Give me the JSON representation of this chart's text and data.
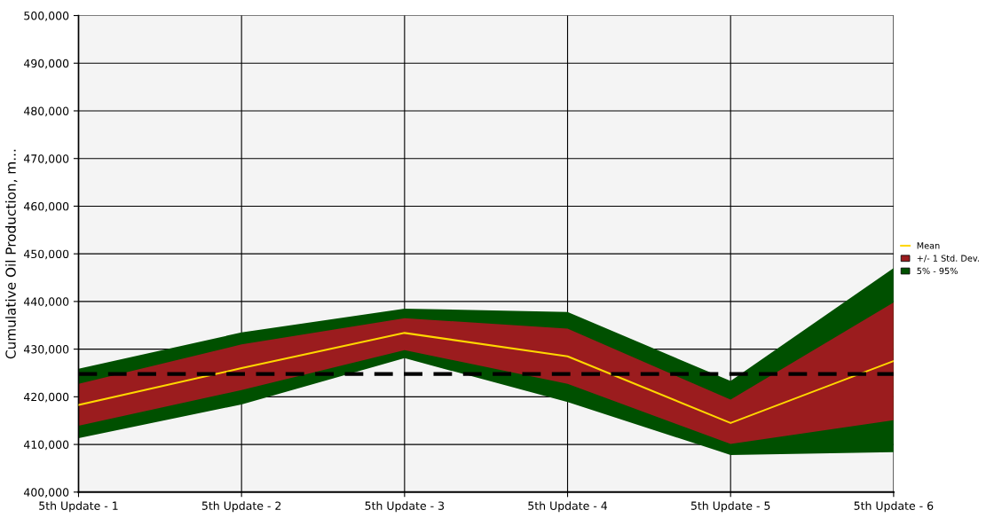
{
  "chart_data": {
    "type": "line",
    "ylabel": "Cumulative Oil Production, m...",
    "categories": [
      "5th Update - 1",
      "5th Update - 2",
      "5th Update - 3",
      "5th Update - 4",
      "5th Update - 5",
      "5th Update - 6"
    ],
    "series": [
      {
        "name": "5% - 95%",
        "type": "line",
        "color": "#005000",
        "values": [
          null,
          null,
          null,
          null,
          null,
          null
        ],
        "lower": [
          411300,
          418400,
          428100,
          418900,
          407800,
          408400
        ],
        "upper": [
          425900,
          433500,
          438500,
          437800,
          423300,
          447000
        ]
      },
      {
        "name": "+/- 1 Std. Dev.",
        "type": "line",
        "color": "#9b1c1e",
        "values": [
          null,
          null,
          null,
          null,
          null,
          null
        ],
        "lower": [
          413900,
          421400,
          429800,
          422700,
          410100,
          415100
        ],
        "upper": [
          422700,
          431000,
          436500,
          434300,
          419400,
          439800
        ]
      },
      {
        "name": "Mean",
        "color": "#ffd700",
        "values": [
          418300,
          426000,
          433400,
          428500,
          414500,
          427500
        ]
      }
    ],
    "ref_lines": [
      {
        "axis": "y",
        "value": 424800,
        "color": "#000000",
        "line_style": "dashed"
      }
    ],
    "ylim": [
      400000,
      500000
    ],
    "yticks": [
      {
        "value": 400000,
        "label": "400,000"
      },
      {
        "value": 410000,
        "label": "410,000"
      },
      {
        "value": 420000,
        "label": "420,000"
      },
      {
        "value": 430000,
        "label": "430,000"
      },
      {
        "value": 440000,
        "label": "440,000"
      },
      {
        "value": 450000,
        "label": "450,000"
      },
      {
        "value": 460000,
        "label": "460,000"
      },
      {
        "value": 470000,
        "label": "470,000"
      },
      {
        "value": 480000,
        "label": "480,000"
      },
      {
        "value": 490000,
        "label": "490,000"
      },
      {
        "value": 500000,
        "label": "500,000"
      }
    ],
    "grid": true,
    "legend": "right"
  }
}
